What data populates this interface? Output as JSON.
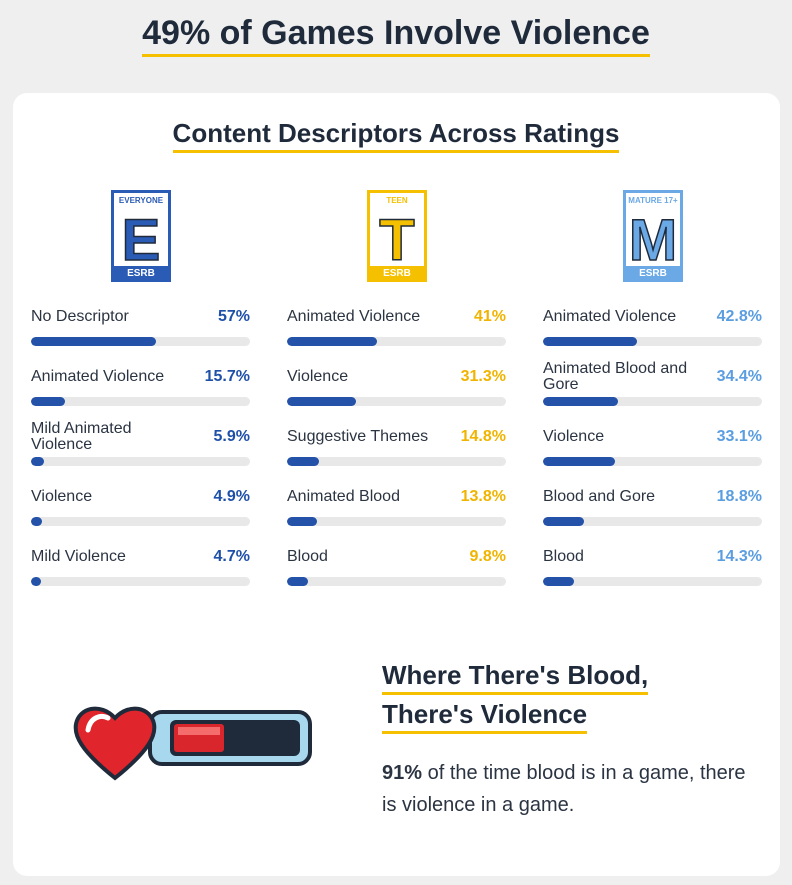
{
  "title": "49% of Games Involve Violence",
  "panel_title": "Content Descriptors Across Ratings",
  "chart_data": [
    {
      "type": "bar",
      "orientation": "horizontal",
      "badge": {
        "top": "EVERYONE",
        "letter": "E",
        "bottom": "ESRB",
        "color": "#2a5bb5"
      },
      "categories": [
        "No Descriptor",
        "Animated Violence",
        "Mild Animated Violence",
        "Violence",
        "Mild Violence"
      ],
      "values": [
        57,
        15.7,
        5.9,
        4.9,
        4.7
      ],
      "value_labels": [
        "57%",
        "15.7%",
        "5.9%",
        "4.9%",
        "4.7%"
      ],
      "xlim": [
        0,
        100
      ],
      "color": "#2352a8",
      "label_color": "#1e50a8"
    },
    {
      "type": "bar",
      "orientation": "horizontal",
      "badge": {
        "top": "TEEN",
        "letter": "T",
        "bottom": "ESRB",
        "color": "#f5c000"
      },
      "categories": [
        "Animated Violence",
        "Violence",
        "Suggestive Themes",
        "Animated Blood",
        "Blood"
      ],
      "values": [
        41,
        31.3,
        14.8,
        13.8,
        9.8
      ],
      "value_labels": [
        "41%",
        "31.3%",
        "14.8%",
        "13.8%",
        "9.8%"
      ],
      "xlim": [
        0,
        100
      ],
      "color": "#2352a8",
      "label_color": "#f0b400"
    },
    {
      "type": "bar",
      "orientation": "horizontal",
      "badge": {
        "top": "MATURE 17+",
        "letter": "M",
        "bottom": "ESRB",
        "color": "#6aa8e6"
      },
      "categories": [
        "Animated Violence",
        "Animated Blood and Gore",
        "Violence",
        "Blood and Gore",
        "Blood"
      ],
      "values": [
        42.8,
        34.4,
        33.1,
        18.8,
        14.3
      ],
      "value_labels": [
        "42.8%",
        "34.4%",
        "33.1%",
        "18.8%",
        "14.3%"
      ],
      "xlim": [
        0,
        100
      ],
      "color": "#2352a8",
      "label_color": "#5a9de0"
    }
  ],
  "callout": {
    "title": [
      "Where There's Blood,",
      "There's Violence"
    ],
    "highlight": "91%",
    "body": "of the time blood is in a game, there is violence in a game."
  }
}
